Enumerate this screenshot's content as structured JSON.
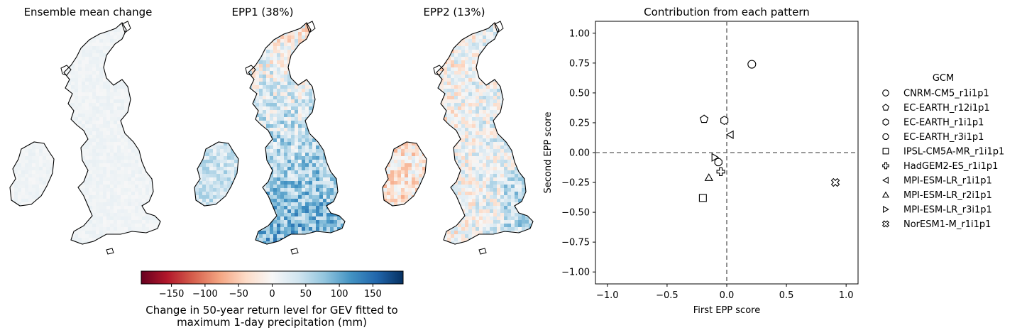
{
  "maps": [
    {
      "title": "Ensemble mean change"
    },
    {
      "title": "EPP1 (38%)"
    },
    {
      "title": "EPP2 (13%)"
    }
  ],
  "colorbar": {
    "ticks": [
      "−150",
      "−100",
      "−50",
      "0",
      "50",
      "100",
      "150"
    ],
    "tick_values": [
      -150,
      -100,
      -50,
      0,
      50,
      100,
      150
    ],
    "range": [
      -195,
      195
    ],
    "label_line1": "Change in 50-year return level for GEV fitted to",
    "label_line2": "maximum 1-day precipitation (mm)",
    "colors": [
      "#67001f",
      "#b2182b",
      "#d6604d",
      "#f4a582",
      "#fddbc7",
      "#f7f7f7",
      "#d1e5f0",
      "#92c5de",
      "#4393c3",
      "#2166ac",
      "#053061"
    ]
  },
  "chart_data": {
    "type": "scatter",
    "title": "Contribution from each pattern",
    "xlabel": "First EPP score",
    "ylabel": "Second EPP score",
    "xlim": [
      -1.1,
      1.1
    ],
    "ylim": [
      -1.1,
      1.1
    ],
    "xticks": [
      "−1.0",
      "−0.5",
      "0.0",
      "0.5",
      "1.0"
    ],
    "xtick_values": [
      -1.0,
      -0.5,
      0.0,
      0.5,
      1.0
    ],
    "yticks": [
      "1.00",
      "0.75",
      "0.50",
      "0.25",
      "0.00",
      "−0.25",
      "−0.50",
      "−0.75",
      "−1.00"
    ],
    "ytick_values": [
      1.0,
      0.75,
      0.5,
      0.25,
      0.0,
      -0.25,
      -0.5,
      -0.75,
      -1.0
    ],
    "reference_lines": {
      "x": 0,
      "y": 0,
      "style": "dashed",
      "color": "#777777"
    },
    "legend_title": "GCM",
    "legend_placement": "outside-right",
    "series": [
      {
        "name": "CNRM-CM5_r1i1p1",
        "marker": "circle",
        "x": 0.21,
        "y": 0.74
      },
      {
        "name": "EC-EARTH_r12i1p1",
        "marker": "pentagon",
        "x": -0.19,
        "y": 0.28
      },
      {
        "name": "EC-EARTH_r1i1p1",
        "marker": "hexagon",
        "x": -0.02,
        "y": 0.27
      },
      {
        "name": "EC-EARTH_r3i1p1",
        "marker": "octagon",
        "x": -0.07,
        "y": -0.08
      },
      {
        "name": "IPSL-CM5A-MR_r1i1p1",
        "marker": "square",
        "x": -0.2,
        "y": -0.38
      },
      {
        "name": "HadGEM2-ES_r1i1p1",
        "marker": "plus",
        "x": -0.05,
        "y": -0.16
      },
      {
        "name": "MPI-ESM-LR_r1i1p1",
        "marker": "triangle-left",
        "x": 0.03,
        "y": 0.15
      },
      {
        "name": "MPI-ESM-LR_r2i1p1",
        "marker": "triangle-up",
        "x": -0.15,
        "y": -0.21
      },
      {
        "name": "MPI-ESM-LR_r3i1p1",
        "marker": "triangle-right",
        "x": -0.1,
        "y": -0.04
      },
      {
        "name": "NorESM1-M_r1i1p1",
        "marker": "x-filled",
        "x": 0.91,
        "y": -0.25
      }
    ]
  }
}
